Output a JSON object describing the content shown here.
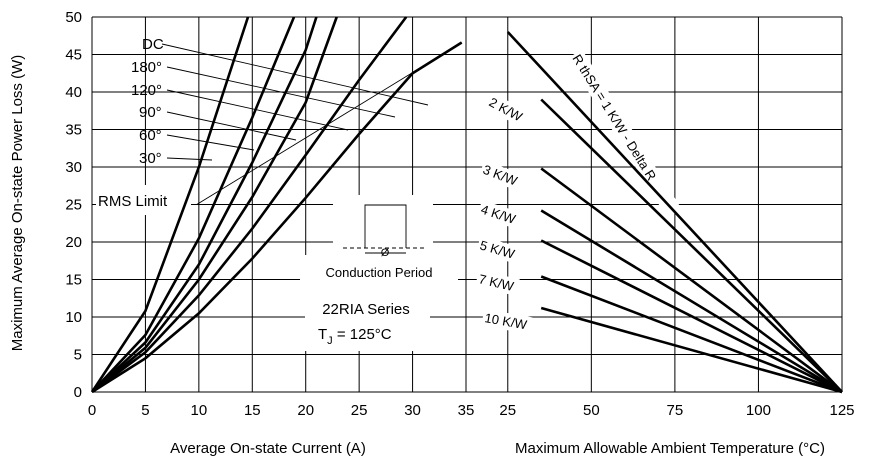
{
  "chart_data": [
    {
      "type": "line",
      "title": "",
      "xlabel": "Average On-state Current (A)",
      "ylabel": "Maximum Average On-state Power Loss (W)",
      "xlim": [
        0,
        35
      ],
      "ylim": [
        0,
        50
      ],
      "xticks": [
        "0",
        "5",
        "10",
        "15",
        "20",
        "25",
        "30",
        "35"
      ],
      "yticks": [
        "0",
        "5",
        "10",
        "15",
        "20",
        "25",
        "30",
        "35",
        "40",
        "45",
        "50"
      ],
      "grid": true,
      "series": [
        {
          "name": "DC",
          "x": [
            0,
            5,
            10,
            15,
            20,
            25,
            30,
            34.6
          ],
          "y": [
            0,
            4.5,
            10.5,
            17.8,
            25.9,
            34.4,
            42.5,
            46.6
          ]
        },
        {
          "name": "180°",
          "x": [
            0,
            5,
            10,
            15,
            20,
            25,
            29.4
          ],
          "y": [
            0,
            5.3,
            12.9,
            21.8,
            31.6,
            41.6,
            50
          ]
        },
        {
          "name": "120°",
          "x": [
            0,
            5,
            10,
            15,
            20,
            22.9
          ],
          "y": [
            0,
            5.9,
            15.0,
            26.0,
            38.6,
            50
          ]
        },
        {
          "name": "90°",
          "x": [
            0,
            5,
            10,
            15,
            20,
            21.0
          ],
          "y": [
            0,
            6.6,
            17.0,
            30.6,
            45.6,
            50
          ]
        },
        {
          "name": "60°",
          "x": [
            0,
            5,
            10,
            15,
            18.9
          ],
          "y": [
            0,
            7.6,
            20.5,
            36.6,
            50
          ]
        },
        {
          "name": "30°",
          "x": [
            0,
            5,
            10,
            14.6
          ],
          "y": [
            0,
            10.8,
            30.0,
            50
          ]
        }
      ],
      "rms_limit": {
        "label": "RMS Limit",
        "x": [
          9.8,
          34.6
        ],
        "y": [
          25.0,
          46.6
        ]
      },
      "annotations": [
        "Conduction Period",
        "Ø",
        "22RIA Series",
        "T",
        "J",
        " = 125°C"
      ]
    },
    {
      "type": "line",
      "title": "",
      "xlabel": "Maximum Allowable Ambient Temperature (°C)",
      "ylabel": "",
      "xlim": [
        35,
        125
      ],
      "ylim": [
        0,
        50
      ],
      "xticks": [
        "35",
        "25",
        "50",
        "75",
        "100",
        "125"
      ],
      "grid": true,
      "series": [
        {
          "name": "R thSA = 1 K/W - Delta R",
          "x": [
            25,
            125
          ],
          "y": [
            48,
            0
          ]
        },
        {
          "name": "2 K/W",
          "x": [
            35,
            125
          ],
          "y": [
            39,
            0
          ]
        },
        {
          "name": "3 K/W",
          "x": [
            35,
            125
          ],
          "y": [
            29.8,
            0
          ]
        },
        {
          "name": "4 K/W",
          "x": [
            35,
            125
          ],
          "y": [
            24.2,
            0
          ]
        },
        {
          "name": "5 K/W",
          "x": [
            35,
            125
          ],
          "y": [
            20.2,
            0
          ]
        },
        {
          "name": "7 K/W",
          "x": [
            35,
            125
          ],
          "y": [
            15.4,
            0
          ]
        },
        {
          "name": "10 K/W",
          "x": [
            35,
            125
          ],
          "y": [
            11.2,
            0
          ]
        }
      ]
    }
  ]
}
